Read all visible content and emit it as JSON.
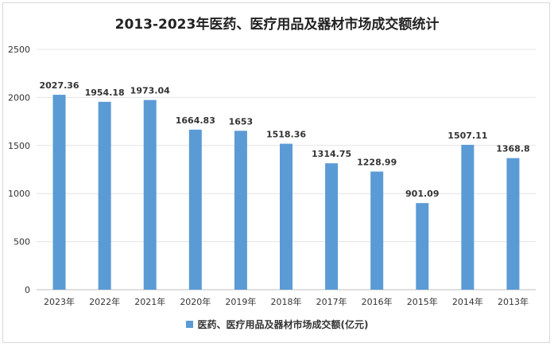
{
  "chart_data": {
    "type": "bar",
    "title": "2013-2023年医药、医疗用品及器材市场成交额统计",
    "categories": [
      "2023年",
      "2022年",
      "2021年",
      "2020年",
      "2019年",
      "2018年",
      "2017年",
      "2016年",
      "2015年",
      "2014年",
      "2013年"
    ],
    "series": [
      {
        "name": "医药、医疗用品及器材市场成交额(亿元)",
        "values": [
          2027.36,
          1954.18,
          1973.04,
          1664.83,
          1653,
          1518.36,
          1314.75,
          1228.99,
          901.09,
          1507.11,
          1368.8
        ]
      }
    ],
    "data_labels": [
      "2027.36",
      "1954.18",
      "1973.04",
      "1664.83",
      "1653",
      "1518.36",
      "1314.75",
      "1228.99",
      "901.09",
      "1507.11",
      "1368.8"
    ],
    "yticks": [
      0,
      500,
      1000,
      1500,
      2000,
      2500
    ],
    "ylim": [
      0,
      2500
    ],
    "grid": true,
    "legend": "bottom",
    "color": "#5b9bd5"
  }
}
